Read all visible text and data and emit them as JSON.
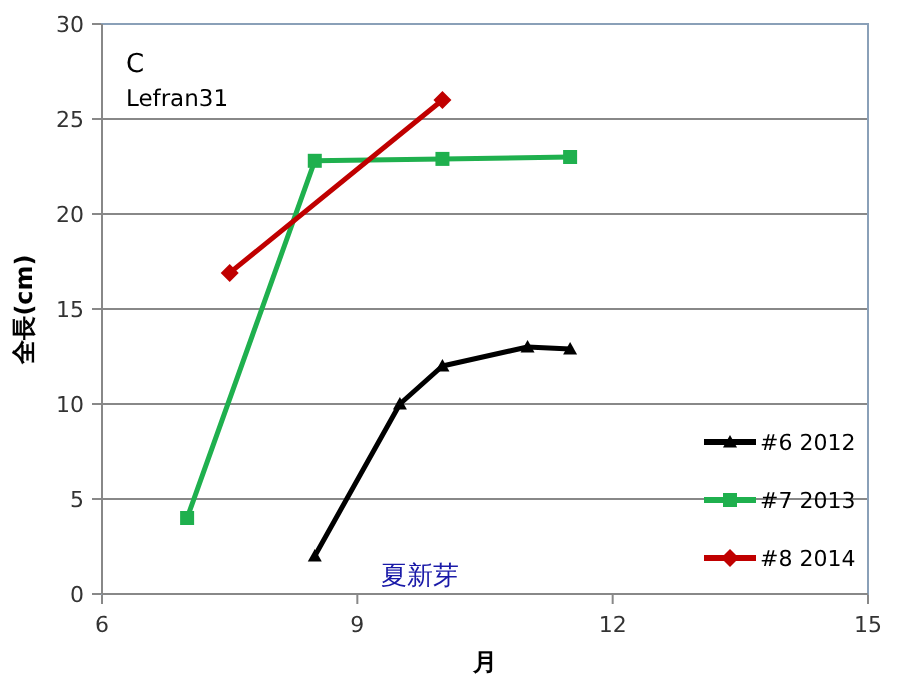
{
  "chart_data": {
    "type": "line",
    "xlabel": "月",
    "ylabel": "全長(cm)",
    "xlim": [
      6,
      15
    ],
    "xticks": [
      6,
      9,
      12,
      15
    ],
    "ylim": [
      0,
      30
    ],
    "yticks": [
      0,
      5,
      10,
      15,
      20,
      25,
      30
    ],
    "grid": "y",
    "legend": "right",
    "annotations": [
      "C",
      "Lefran31",
      "夏新芽"
    ],
    "series": [
      {
        "name": "#6 2012",
        "color": "#000000",
        "marker": "triangle",
        "x": [
          8.5,
          9.5,
          10,
          11,
          11.5
        ],
        "values": [
          2,
          10,
          12,
          13,
          12.9
        ]
      },
      {
        "name": "#7 2013",
        "color": "#1fb04e",
        "marker": "square",
        "x": [
          7,
          8.5,
          10,
          11.5
        ],
        "values": [
          4,
          22.8,
          22.9,
          23
        ]
      },
      {
        "name": "#8 2014",
        "color": "#c00000",
        "marker": "diamond",
        "x": [
          7.5,
          10
        ],
        "values": [
          16.9,
          26
        ]
      }
    ]
  }
}
